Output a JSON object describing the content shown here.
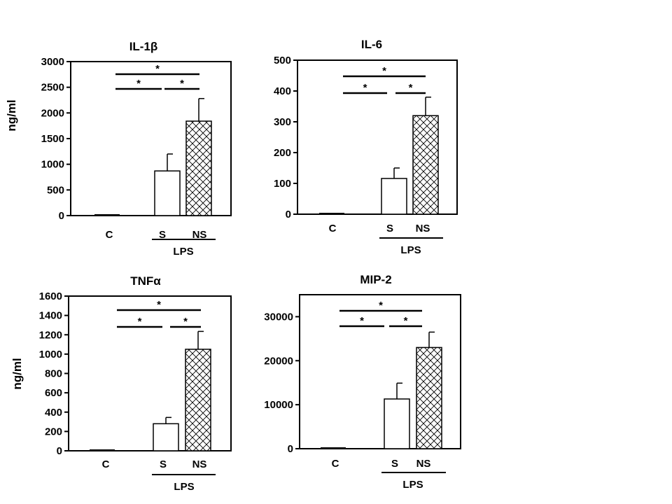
{
  "y_axis_label": "ng/ml",
  "chart_data": [
    {
      "type": "bar",
      "title": "IL-1β",
      "categories": [
        "C",
        "S",
        "NS"
      ],
      "group_label": "LPS",
      "group_members": [
        "S",
        "NS"
      ],
      "values": [
        15,
        870,
        1840
      ],
      "errors": [
        0,
        330,
        440
      ],
      "ylim": [
        0,
        3000
      ],
      "yticks": [
        0,
        500,
        1000,
        1500,
        2000,
        2500,
        3000
      ],
      "ytick_labels": [
        "0",
        "500",
        "1000",
        "1500",
        "2000",
        "2500",
        "3000"
      ],
      "ylabel": "ng/ml",
      "bar_fills": [
        "solid",
        "open",
        "crosshatch"
      ],
      "significance": [
        {
          "from": "C",
          "to": "NS",
          "label": "*"
        },
        {
          "from": "C",
          "to": "S",
          "label": "*"
        },
        {
          "from": "S",
          "to": "NS",
          "label": "*"
        }
      ]
    },
    {
      "type": "bar",
      "title": "IL-6",
      "categories": [
        "C",
        "S",
        "NS"
      ],
      "group_label": "LPS",
      "group_members": [
        "S",
        "NS"
      ],
      "values": [
        2,
        116,
        320
      ],
      "errors": [
        0,
        34,
        60
      ],
      "ylim": [
        0,
        500
      ],
      "yticks": [
        0,
        100,
        200,
        300,
        400,
        500
      ],
      "ytick_labels": [
        "0",
        "100",
        "200",
        "300",
        "400",
        "500"
      ],
      "ylabel": "",
      "bar_fills": [
        "solid",
        "open",
        "crosshatch"
      ],
      "significance": [
        {
          "from": "C",
          "to": "NS",
          "label": "*"
        },
        {
          "from": "C",
          "to": "S",
          "label": "*"
        },
        {
          "from": "S",
          "to": "NS",
          "label": "*"
        }
      ]
    },
    {
      "type": "bar",
      "title": "TNFα",
      "categories": [
        "C",
        "S",
        "NS"
      ],
      "group_label": "LPS",
      "group_members": [
        "S",
        "NS"
      ],
      "values": [
        8,
        280,
        1050
      ],
      "errors": [
        0,
        65,
        185
      ],
      "ylim": [
        0,
        1600
      ],
      "yticks": [
        0,
        200,
        400,
        600,
        800,
        1000,
        1200,
        1400,
        1600
      ],
      "ytick_labels": [
        "0",
        "200",
        "400",
        "600",
        "800",
        "1000",
        "1200",
        "1400",
        "1600"
      ],
      "ylabel": "ng/ml",
      "bar_fills": [
        "solid",
        "open",
        "crosshatch"
      ],
      "significance": [
        {
          "from": "C",
          "to": "NS",
          "label": "*"
        },
        {
          "from": "C",
          "to": "S",
          "label": "*"
        },
        {
          "from": "S",
          "to": "NS",
          "label": "*"
        }
      ]
    },
    {
      "type": "bar",
      "title": "MIP-2",
      "categories": [
        "C",
        "S",
        "NS"
      ],
      "group_label": "LPS",
      "group_members": [
        "S",
        "NS"
      ],
      "values": [
        300,
        11300,
        23000
      ],
      "errors": [
        0,
        3600,
        3500
      ],
      "ylim": [
        0,
        35000
      ],
      "yticks": [
        0,
        10000,
        20000,
        30000
      ],
      "ytick_labels": [
        "0",
        "10000",
        "20000",
        "30000"
      ],
      "ylabel": "",
      "bar_fills": [
        "solid",
        "open",
        "crosshatch"
      ],
      "significance": [
        {
          "from": "C",
          "to": "NS",
          "label": "*"
        },
        {
          "from": "C",
          "to": "S",
          "label": "*"
        },
        {
          "from": "S",
          "to": "NS",
          "label": "*"
        }
      ]
    }
  ]
}
